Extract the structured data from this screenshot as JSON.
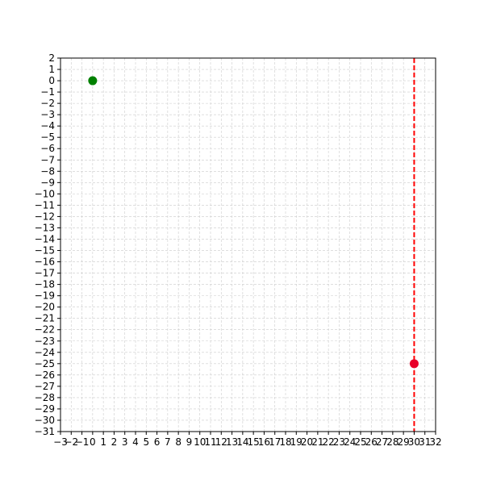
{
  "chart_data": {
    "type": "scatter",
    "title": "",
    "xlabel": "",
    "ylabel": "",
    "xlim": [
      -3,
      32
    ],
    "ylim": [
      -31,
      2
    ],
    "xticks": [
      -3,
      -2,
      -1,
      0,
      1,
      2,
      3,
      4,
      5,
      6,
      7,
      8,
      9,
      10,
      11,
      12,
      13,
      14,
      15,
      16,
      17,
      18,
      19,
      20,
      21,
      22,
      23,
      24,
      25,
      26,
      27,
      28,
      29,
      30,
      31,
      32
    ],
    "yticks": [
      2,
      1,
      0,
      -1,
      -2,
      -3,
      -4,
      -5,
      -6,
      -7,
      -8,
      -9,
      -10,
      -11,
      -12,
      -13,
      -14,
      -15,
      -16,
      -17,
      -18,
      -19,
      -20,
      -21,
      -22,
      -23,
      -24,
      -25,
      -26,
      -27,
      -28,
      -29,
      -30,
      -31
    ],
    "grid": true,
    "grid_style": "dashed",
    "points": [
      {
        "x": 0,
        "y": 0,
        "color": "#008000"
      },
      {
        "x": 30,
        "y": -25,
        "color": "#e8002a"
      }
    ],
    "vlines": [
      {
        "x": 30,
        "color": "#ff0000",
        "style": "dashed"
      }
    ]
  }
}
